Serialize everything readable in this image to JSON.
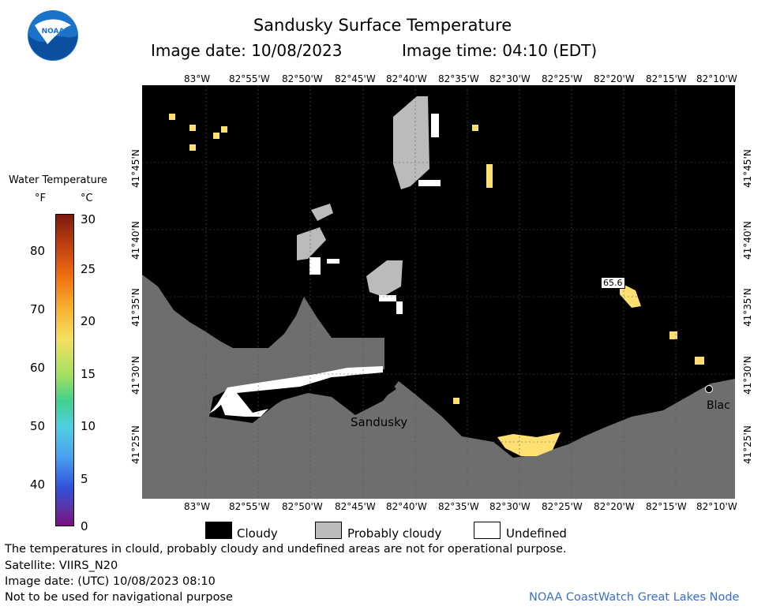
{
  "header": {
    "title": "Sandusky Surface Temperature",
    "image_date": "Image date: 10/08/2023",
    "image_time": "Image time: 04:10 (EDT)"
  },
  "logo": {
    "text": "NOAA"
  },
  "axes": {
    "top_lon": [
      "83°W",
      "82°55'W",
      "82°50'W",
      "82°45'W",
      "82°40'W",
      "82°35'W",
      "82°30'W",
      "82°25'W",
      "82°20'W",
      "82°15'W",
      "82°10'W"
    ],
    "bottom_lon": [
      "83°W",
      "82°55'W",
      "82°50'W",
      "82°45'W",
      "82°40'W",
      "82°35'W",
      "82°30'W",
      "82°25'W",
      "82°20'W",
      "82°15'W",
      "82°10'W"
    ],
    "left_lat": [
      "41°45'N",
      "41°40'N",
      "41°35'N",
      "41°30'N",
      "41°25'N"
    ],
    "right_lat": [
      "41°45'N",
      "41°40'N",
      "41°35'N",
      "41°30'N",
      "41°25'N"
    ]
  },
  "map": {
    "place_sandusky": "Sandusky",
    "place_blac": "Blac",
    "temp_label": "65.6"
  },
  "colorbar": {
    "title": "Water Temperature",
    "unit_f": "°F",
    "unit_c": "°C",
    "f_ticks": [
      "80",
      "70",
      "60",
      "50",
      "40"
    ],
    "c_ticks": [
      "30",
      "25",
      "20",
      "15",
      "10",
      "5",
      "0"
    ]
  },
  "legend": {
    "cloudy": "Cloudy",
    "probably_cloudy": "Probably cloudy",
    "undefined": "Undefined"
  },
  "footer": {
    "disclaimer": "The temperatures in clould, probably cloudy and undefined areas are not for operational purpose.",
    "satellite": "Satellite: VIIRS_N20",
    "utc_date": "Image date: (UTC) 10/08/2023  08:10",
    "nav": "Not to be used for navigational purpose",
    "credit": "NOAA CoastWatch Great Lakes Node"
  },
  "colors": {
    "cloudy": "#000000",
    "probably_cloudy": "#bbbbbb",
    "land": "#6e6e6e",
    "warm_water": "#ffe070",
    "credit": "#3a6fc4"
  }
}
